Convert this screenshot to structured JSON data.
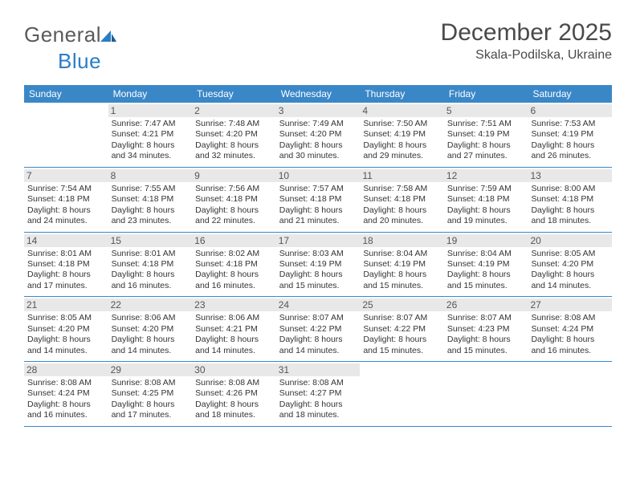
{
  "logo": {
    "text1": "General",
    "text2": "Blue"
  },
  "title": "December 2025",
  "location": "Skala-Podilska, Ukraine",
  "colors": {
    "header_bg": "#3a87c8",
    "header_text": "#ffffff",
    "daynum_bg": "#e8e8e8",
    "border": "#3a87c8",
    "logo_gray": "#5a5a5a",
    "logo_blue": "#2a7ec5"
  },
  "day_headers": [
    "Sunday",
    "Monday",
    "Tuesday",
    "Wednesday",
    "Thursday",
    "Friday",
    "Saturday"
  ],
  "weeks": [
    [
      {
        "n": "",
        "lines": [
          "",
          "",
          "",
          ""
        ]
      },
      {
        "n": "1",
        "lines": [
          "Sunrise: 7:47 AM",
          "Sunset: 4:21 PM",
          "Daylight: 8 hours",
          "and 34 minutes."
        ]
      },
      {
        "n": "2",
        "lines": [
          "Sunrise: 7:48 AM",
          "Sunset: 4:20 PM",
          "Daylight: 8 hours",
          "and 32 minutes."
        ]
      },
      {
        "n": "3",
        "lines": [
          "Sunrise: 7:49 AM",
          "Sunset: 4:20 PM",
          "Daylight: 8 hours",
          "and 30 minutes."
        ]
      },
      {
        "n": "4",
        "lines": [
          "Sunrise: 7:50 AM",
          "Sunset: 4:19 PM",
          "Daylight: 8 hours",
          "and 29 minutes."
        ]
      },
      {
        "n": "5",
        "lines": [
          "Sunrise: 7:51 AM",
          "Sunset: 4:19 PM",
          "Daylight: 8 hours",
          "and 27 minutes."
        ]
      },
      {
        "n": "6",
        "lines": [
          "Sunrise: 7:53 AM",
          "Sunset: 4:19 PM",
          "Daylight: 8 hours",
          "and 26 minutes."
        ]
      }
    ],
    [
      {
        "n": "7",
        "lines": [
          "Sunrise: 7:54 AM",
          "Sunset: 4:18 PM",
          "Daylight: 8 hours",
          "and 24 minutes."
        ]
      },
      {
        "n": "8",
        "lines": [
          "Sunrise: 7:55 AM",
          "Sunset: 4:18 PM",
          "Daylight: 8 hours",
          "and 23 minutes."
        ]
      },
      {
        "n": "9",
        "lines": [
          "Sunrise: 7:56 AM",
          "Sunset: 4:18 PM",
          "Daylight: 8 hours",
          "and 22 minutes."
        ]
      },
      {
        "n": "10",
        "lines": [
          "Sunrise: 7:57 AM",
          "Sunset: 4:18 PM",
          "Daylight: 8 hours",
          "and 21 minutes."
        ]
      },
      {
        "n": "11",
        "lines": [
          "Sunrise: 7:58 AM",
          "Sunset: 4:18 PM",
          "Daylight: 8 hours",
          "and 20 minutes."
        ]
      },
      {
        "n": "12",
        "lines": [
          "Sunrise: 7:59 AM",
          "Sunset: 4:18 PM",
          "Daylight: 8 hours",
          "and 19 minutes."
        ]
      },
      {
        "n": "13",
        "lines": [
          "Sunrise: 8:00 AM",
          "Sunset: 4:18 PM",
          "Daylight: 8 hours",
          "and 18 minutes."
        ]
      }
    ],
    [
      {
        "n": "14",
        "lines": [
          "Sunrise: 8:01 AM",
          "Sunset: 4:18 PM",
          "Daylight: 8 hours",
          "and 17 minutes."
        ]
      },
      {
        "n": "15",
        "lines": [
          "Sunrise: 8:01 AM",
          "Sunset: 4:18 PM",
          "Daylight: 8 hours",
          "and 16 minutes."
        ]
      },
      {
        "n": "16",
        "lines": [
          "Sunrise: 8:02 AM",
          "Sunset: 4:18 PM",
          "Daylight: 8 hours",
          "and 16 minutes."
        ]
      },
      {
        "n": "17",
        "lines": [
          "Sunrise: 8:03 AM",
          "Sunset: 4:19 PM",
          "Daylight: 8 hours",
          "and 15 minutes."
        ]
      },
      {
        "n": "18",
        "lines": [
          "Sunrise: 8:04 AM",
          "Sunset: 4:19 PM",
          "Daylight: 8 hours",
          "and 15 minutes."
        ]
      },
      {
        "n": "19",
        "lines": [
          "Sunrise: 8:04 AM",
          "Sunset: 4:19 PM",
          "Daylight: 8 hours",
          "and 15 minutes."
        ]
      },
      {
        "n": "20",
        "lines": [
          "Sunrise: 8:05 AM",
          "Sunset: 4:20 PM",
          "Daylight: 8 hours",
          "and 14 minutes."
        ]
      }
    ],
    [
      {
        "n": "21",
        "lines": [
          "Sunrise: 8:05 AM",
          "Sunset: 4:20 PM",
          "Daylight: 8 hours",
          "and 14 minutes."
        ]
      },
      {
        "n": "22",
        "lines": [
          "Sunrise: 8:06 AM",
          "Sunset: 4:20 PM",
          "Daylight: 8 hours",
          "and 14 minutes."
        ]
      },
      {
        "n": "23",
        "lines": [
          "Sunrise: 8:06 AM",
          "Sunset: 4:21 PM",
          "Daylight: 8 hours",
          "and 14 minutes."
        ]
      },
      {
        "n": "24",
        "lines": [
          "Sunrise: 8:07 AM",
          "Sunset: 4:22 PM",
          "Daylight: 8 hours",
          "and 14 minutes."
        ]
      },
      {
        "n": "25",
        "lines": [
          "Sunrise: 8:07 AM",
          "Sunset: 4:22 PM",
          "Daylight: 8 hours",
          "and 15 minutes."
        ]
      },
      {
        "n": "26",
        "lines": [
          "Sunrise: 8:07 AM",
          "Sunset: 4:23 PM",
          "Daylight: 8 hours",
          "and 15 minutes."
        ]
      },
      {
        "n": "27",
        "lines": [
          "Sunrise: 8:08 AM",
          "Sunset: 4:24 PM",
          "Daylight: 8 hours",
          "and 16 minutes."
        ]
      }
    ],
    [
      {
        "n": "28",
        "lines": [
          "Sunrise: 8:08 AM",
          "Sunset: 4:24 PM",
          "Daylight: 8 hours",
          "and 16 minutes."
        ]
      },
      {
        "n": "29",
        "lines": [
          "Sunrise: 8:08 AM",
          "Sunset: 4:25 PM",
          "Daylight: 8 hours",
          "and 17 minutes."
        ]
      },
      {
        "n": "30",
        "lines": [
          "Sunrise: 8:08 AM",
          "Sunset: 4:26 PM",
          "Daylight: 8 hours",
          "and 18 minutes."
        ]
      },
      {
        "n": "31",
        "lines": [
          "Sunrise: 8:08 AM",
          "Sunset: 4:27 PM",
          "Daylight: 8 hours",
          "and 18 minutes."
        ]
      },
      {
        "n": "",
        "lines": [
          "",
          "",
          "",
          ""
        ]
      },
      {
        "n": "",
        "lines": [
          "",
          "",
          "",
          ""
        ]
      },
      {
        "n": "",
        "lines": [
          "",
          "",
          "",
          ""
        ]
      }
    ]
  ]
}
